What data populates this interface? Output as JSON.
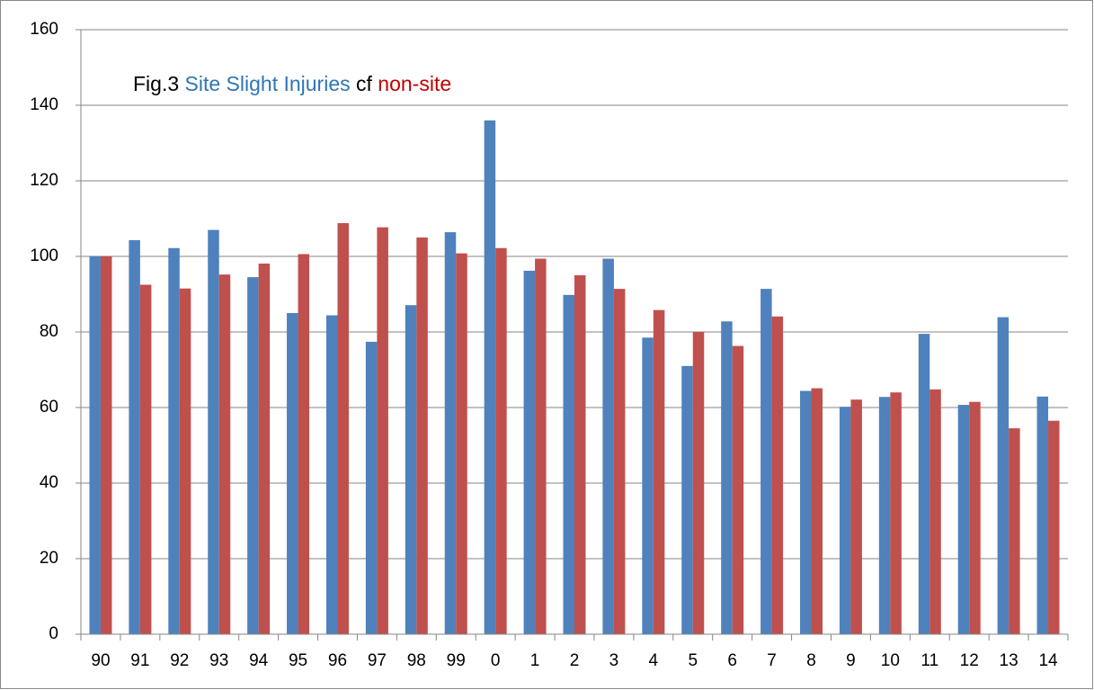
{
  "chart_data": {
    "type": "bar",
    "title_prefix": "Fig.3",
    "title_joiner": "cf",
    "title_colors": [
      "#000000",
      "#2e75b6",
      "#000000",
      "#c00000"
    ],
    "categories": [
      "90",
      "91",
      "92",
      "93",
      "94",
      "95",
      "96",
      "97",
      "98",
      "99",
      "0",
      "1",
      "2",
      "3",
      "4",
      "5",
      "6",
      "7",
      "8",
      "9",
      "10",
      "11",
      "12",
      "13",
      "14"
    ],
    "series": [
      {
        "name": "Site Slight Injuries",
        "color": "#4f81bd",
        "values": [
          100,
          104.3,
          102.2,
          107,
          94.5,
          85,
          84.4,
          77.4,
          87.1,
          106.4,
          136,
          96.2,
          89.8,
          99.4,
          78.5,
          71,
          82.8,
          91.4,
          64.4,
          60.2,
          62.8,
          79.5,
          60.7,
          83.9,
          62.9
        ]
      },
      {
        "name": "non-site",
        "color": "#c0504d",
        "values": [
          100,
          92.5,
          91.5,
          95.2,
          98.1,
          100.6,
          108.8,
          107.7,
          105,
          100.8,
          102.2,
          99.4,
          95,
          91.4,
          85.8,
          80,
          76.3,
          84.1,
          65.1,
          62.1,
          64,
          64.8,
          61.5,
          54.5,
          56.5
        ]
      }
    ],
    "ylim": [
      0,
      160
    ],
    "yticks": [
      0,
      20,
      40,
      60,
      80,
      100,
      120,
      140,
      160
    ],
    "grid": true
  }
}
